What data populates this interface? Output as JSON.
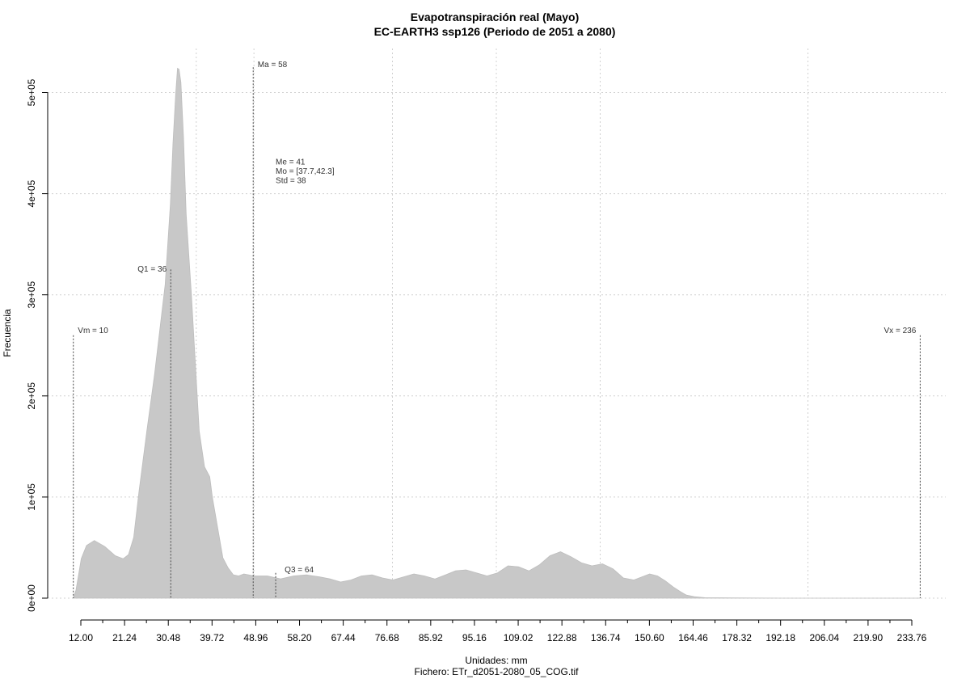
{
  "chart_data": {
    "type": "area",
    "title": "Evapotranspiración real (Mayo)",
    "subtitle": "EC-EARTH3 ssp126 (Periodo de 2051 a 2080)",
    "xlabel": "Unidades: mm",
    "ylabel": "Frecuencia",
    "footer": "Fichero: ETr_d2051-2080_05_COG.tif",
    "fill_color": "#c8c8c8",
    "grid": true,
    "xlim": [
      5.0,
      240.0
    ],
    "ylim": [
      0,
      525000
    ],
    "x_ticks": [
      "12.00",
      "21.24",
      "30.48",
      "39.72",
      "48.96",
      "58.20",
      "67.44",
      "76.68",
      "85.92",
      "95.16",
      "109.02",
      "122.88",
      "136.74",
      "150.60",
      "164.46",
      "178.32",
      "192.18",
      "206.04",
      "219.90",
      "233.76"
    ],
    "y_ticks": [
      {
        "value": 0,
        "label": "0e+00"
      },
      {
        "value": 100000,
        "label": "1e+05"
      },
      {
        "value": 200000,
        "label": "2e+05"
      },
      {
        "value": 300000,
        "label": "3e+05"
      },
      {
        "value": 400000,
        "label": "4e+05"
      },
      {
        "value": 500000,
        "label": "5e+05"
      }
    ],
    "x_grid": [
      42.8,
      58.2,
      95.16,
      122.88,
      150.6,
      206.04
    ],
    "y_grid": [
      0,
      100000,
      200000,
      300000,
      400000,
      500000
    ],
    "density": {
      "x": [
        10,
        10.7,
        11.4,
        12.1,
        13.5,
        15.6,
        18.4,
        21.2,
        23.3,
        24.7,
        26.1,
        27.5,
        29.6,
        31.7,
        33.1,
        34.5,
        35.9,
        36.6,
        37.3,
        37.8,
        38.2,
        38.7,
        39.4,
        40.1,
        41.5,
        43.6,
        45.0,
        46.4,
        47.1,
        48.5,
        49.9,
        51.3,
        52.7,
        54.1,
        55.5,
        58.3,
        61.8,
        65.3,
        68.8,
        72.2,
        75.7,
        78.5,
        81.3,
        84.1,
        86.9,
        89.7,
        92.5,
        95.3,
        98.1,
        100.9,
        103.7,
        106.5,
        109.3,
        112.0,
        114.8,
        117.6,
        120.4,
        123.2,
        126.0,
        128.8,
        131.6,
        134.4,
        137.2,
        140.0,
        142.8,
        145.6,
        148.4,
        151.2,
        154.0,
        156.8,
        159.6,
        161.7,
        163.8,
        165.9,
        168.0,
        170.1,
        172.2,
        173.6,
        175.7,
        178.5,
        185.5,
        199.4,
        213.3,
        227.2,
        236.0
      ],
      "y": [
        0,
        8000,
        23000,
        39000,
        52000,
        57000,
        51000,
        42000,
        39000,
        43000,
        60000,
        105000,
        165000,
        222000,
        266000,
        310000,
        390000,
        450000,
        498000,
        524000,
        523000,
        510000,
        456000,
        380000,
        300000,
        165000,
        130000,
        120000,
        100000,
        70000,
        40000,
        30000,
        23000,
        22000,
        24000,
        22000,
        22000,
        19000,
        22000,
        23000,
        21000,
        19000,
        16000,
        18000,
        22000,
        23000,
        20000,
        18000,
        21000,
        24000,
        22000,
        19000,
        23000,
        27000,
        28000,
        25000,
        22000,
        25000,
        32000,
        31000,
        27000,
        33000,
        42000,
        46000,
        41000,
        35000,
        32000,
        34000,
        29000,
        20000,
        18000,
        21000,
        24000,
        22000,
        17000,
        11000,
        6000,
        3000,
        1500,
        500,
        200,
        0,
        0,
        0,
        0
      ]
    },
    "markers": [
      {
        "label": "Vm = 10",
        "x": 10,
        "top": 260000,
        "text_x": 11.2,
        "text_y": 262000,
        "anchor": "start"
      },
      {
        "label": "Q1 = 36",
        "x": 36,
        "top": 325000,
        "text_x": 34.9,
        "text_y": 323000,
        "anchor": "end"
      },
      {
        "label": "Ma = 58",
        "x": 58,
        "top": 525000,
        "text_x": 59.2,
        "text_y": 525000,
        "anchor": "start"
      },
      {
        "label": "Q3 = 64",
        "x": 64,
        "top": 25000,
        "text_x": 66.4,
        "text_y": 25500,
        "anchor": "start"
      },
      {
        "label": "Vx = 236",
        "x": 236,
        "top": 260000,
        "text_x": 234.9,
        "text_y": 262000,
        "anchor": "end"
      }
    ],
    "stats": {
      "lines": [
        "Me = 41",
        "Mo = [37.7,42.3]",
        "Std = 38"
      ],
      "x": 64.0,
      "y": 429000
    }
  }
}
